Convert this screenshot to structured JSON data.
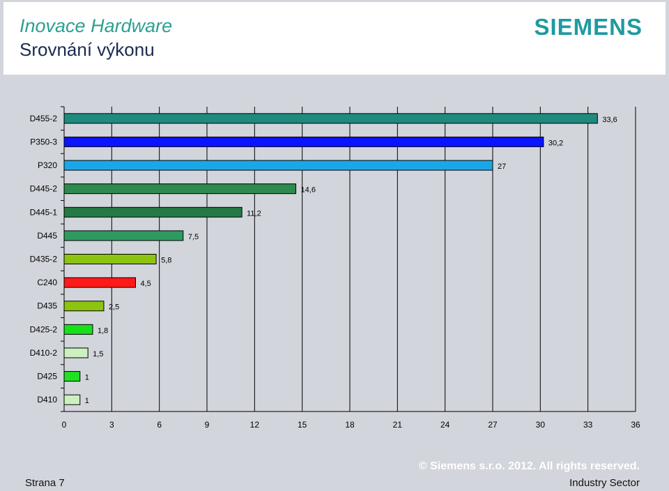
{
  "header": {
    "title": "Inovace Hardware",
    "subtitle": "Srovnání výkonu",
    "logo": "SIEMENS"
  },
  "footer": {
    "page": "Strana 7",
    "copyright": "© Siemens s.r.o. 2012. All rights reserved.",
    "sector": "Industry Sector"
  },
  "chart_data": {
    "type": "bar",
    "orientation": "horizontal",
    "categories": [
      "D455-2",
      "P350-3",
      "P320",
      "D445-2",
      "D445-1",
      "D445",
      "D435-2",
      "C240",
      "D435",
      "D425-2",
      "D410-2",
      "D425",
      "D410"
    ],
    "values": [
      33.6,
      30.2,
      27,
      14.6,
      11.2,
      7.5,
      5.8,
      4.5,
      2.5,
      1.8,
      1.5,
      1,
      1
    ],
    "value_labels": [
      "33,6",
      "30,2",
      "27",
      "14,6",
      "11,2",
      "7,5",
      "5,8",
      "4,5",
      "2,5",
      "1,8",
      "1,5",
      "1",
      "1"
    ],
    "colors": [
      "#1f8a7e",
      "#0a14ff",
      "#1aa7e8",
      "#2e8a4e",
      "#247a44",
      "#2f9a60",
      "#8cc410",
      "#ff1a1a",
      "#8cc410",
      "#18e018",
      "#ccf0c0",
      "#22e022",
      "#ccf0c0"
    ],
    "xlim": [
      0,
      36
    ],
    "xticks": [
      "0",
      "3",
      "6",
      "9",
      "12",
      "15",
      "18",
      "21",
      "24",
      "27",
      "30",
      "33",
      "36"
    ],
    "grid": true,
    "legend": "none"
  }
}
